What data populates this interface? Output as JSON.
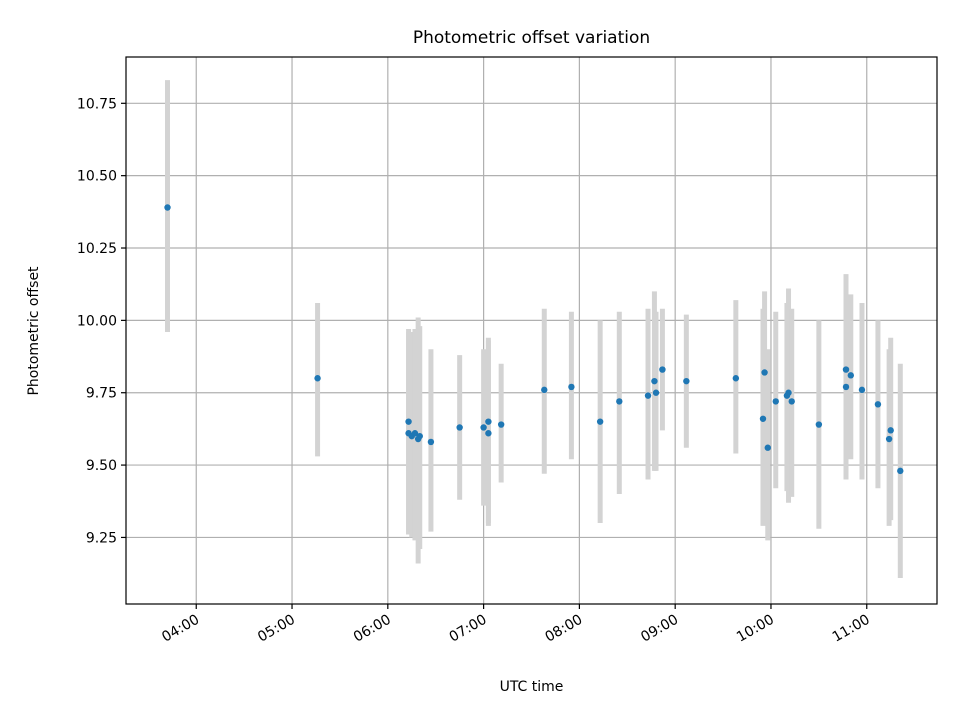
{
  "chart_data": {
    "type": "scatter",
    "title": "Photometric offset variation",
    "xlabel": "UTC time",
    "ylabel": "Photometric offset",
    "x_axis_type": "time",
    "xlim": [
      "03:16",
      "11:44"
    ],
    "ylim": [
      9.02,
      10.91
    ],
    "xticks": [
      "04:00",
      "05:00",
      "06:00",
      "07:00",
      "08:00",
      "09:00",
      "10:00",
      "11:00"
    ],
    "yticks": [
      9.25,
      9.5,
      9.75,
      10.0,
      10.25,
      10.5,
      10.75
    ],
    "ytick_labels": [
      "9.25",
      "9.50",
      "9.75",
      "10.00",
      "10.25",
      "10.50",
      "10.75"
    ],
    "grid": true,
    "point_color": "#1f77b4",
    "errorbar_color": "#d3d3d3",
    "points": [
      {
        "x": "03:42",
        "y": 10.39,
        "lo": 9.96,
        "hi": 10.83
      },
      {
        "x": "05:16",
        "y": 9.8,
        "lo": 9.53,
        "hi": 10.06
      },
      {
        "x": "06:13",
        "y": 9.61,
        "lo": 9.26,
        "hi": 9.97
      },
      {
        "x": "06:13",
        "y": 9.65,
        "lo": 9.26,
        "hi": 9.96
      },
      {
        "x": "06:15",
        "y": 9.6,
        "lo": 9.25,
        "hi": 9.96
      },
      {
        "x": "06:17",
        "y": 9.61,
        "lo": 9.24,
        "hi": 9.97
      },
      {
        "x": "06:19",
        "y": 9.59,
        "lo": 9.16,
        "hi": 10.01
      },
      {
        "x": "06:20",
        "y": 9.6,
        "lo": 9.21,
        "hi": 9.98
      },
      {
        "x": "06:27",
        "y": 9.58,
        "lo": 9.27,
        "hi": 9.9
      },
      {
        "x": "06:45",
        "y": 9.63,
        "lo": 9.38,
        "hi": 9.88
      },
      {
        "x": "07:00",
        "y": 9.63,
        "lo": 9.36,
        "hi": 9.9
      },
      {
        "x": "07:03",
        "y": 9.65,
        "lo": 9.3,
        "hi": 9.94
      },
      {
        "x": "07:03",
        "y": 9.61,
        "lo": 9.29,
        "hi": 9.93
      },
      {
        "x": "07:11",
        "y": 9.64,
        "lo": 9.44,
        "hi": 9.85
      },
      {
        "x": "07:38",
        "y": 9.76,
        "lo": 9.47,
        "hi": 10.04
      },
      {
        "x": "07:55",
        "y": 9.77,
        "lo": 9.52,
        "hi": 10.03
      },
      {
        "x": "08:13",
        "y": 9.65,
        "lo": 9.3,
        "hi": 10.0
      },
      {
        "x": "08:25",
        "y": 9.72,
        "lo": 9.4,
        "hi": 10.03
      },
      {
        "x": "08:43",
        "y": 9.74,
        "lo": 9.45,
        "hi": 10.04
      },
      {
        "x": "08:47",
        "y": 9.79,
        "lo": 9.48,
        "hi": 10.1
      },
      {
        "x": "08:48",
        "y": 9.75,
        "lo": 9.48,
        "hi": 10.03
      },
      {
        "x": "08:52",
        "y": 9.83,
        "lo": 9.62,
        "hi": 10.04
      },
      {
        "x": "09:07",
        "y": 9.79,
        "lo": 9.56,
        "hi": 10.02
      },
      {
        "x": "09:38",
        "y": 9.8,
        "lo": 9.54,
        "hi": 10.07
      },
      {
        "x": "09:55",
        "y": 9.66,
        "lo": 9.29,
        "hi": 10.04
      },
      {
        "x": "09:56",
        "y": 9.82,
        "lo": 9.55,
        "hi": 10.1
      },
      {
        "x": "09:58",
        "y": 9.56,
        "lo": 9.24,
        "hi": 9.9
      },
      {
        "x": "10:03",
        "y": 9.72,
        "lo": 9.42,
        "hi": 10.03
      },
      {
        "x": "10:10",
        "y": 9.74,
        "lo": 9.41,
        "hi": 10.06
      },
      {
        "x": "10:11",
        "y": 9.75,
        "lo": 9.37,
        "hi": 10.11
      },
      {
        "x": "10:13",
        "y": 9.72,
        "lo": 9.39,
        "hi": 10.04
      },
      {
        "x": "10:30",
        "y": 9.64,
        "lo": 9.28,
        "hi": 10.0
      },
      {
        "x": "10:47",
        "y": 9.83,
        "lo": 9.45,
        "hi": 10.16
      },
      {
        "x": "10:47",
        "y": 9.77,
        "lo": 9.45,
        "hi": 10.1
      },
      {
        "x": "10:50",
        "y": 9.81,
        "lo": 9.52,
        "hi": 10.09
      },
      {
        "x": "10:57",
        "y": 9.76,
        "lo": 9.45,
        "hi": 10.06
      },
      {
        "x": "11:07",
        "y": 9.71,
        "lo": 9.42,
        "hi": 10.0
      },
      {
        "x": "11:14",
        "y": 9.59,
        "lo": 9.29,
        "hi": 9.9
      },
      {
        "x": "11:15",
        "y": 9.62,
        "lo": 9.31,
        "hi": 9.94
      },
      {
        "x": "11:21",
        "y": 9.48,
        "lo": 9.11,
        "hi": 9.85
      }
    ]
  }
}
